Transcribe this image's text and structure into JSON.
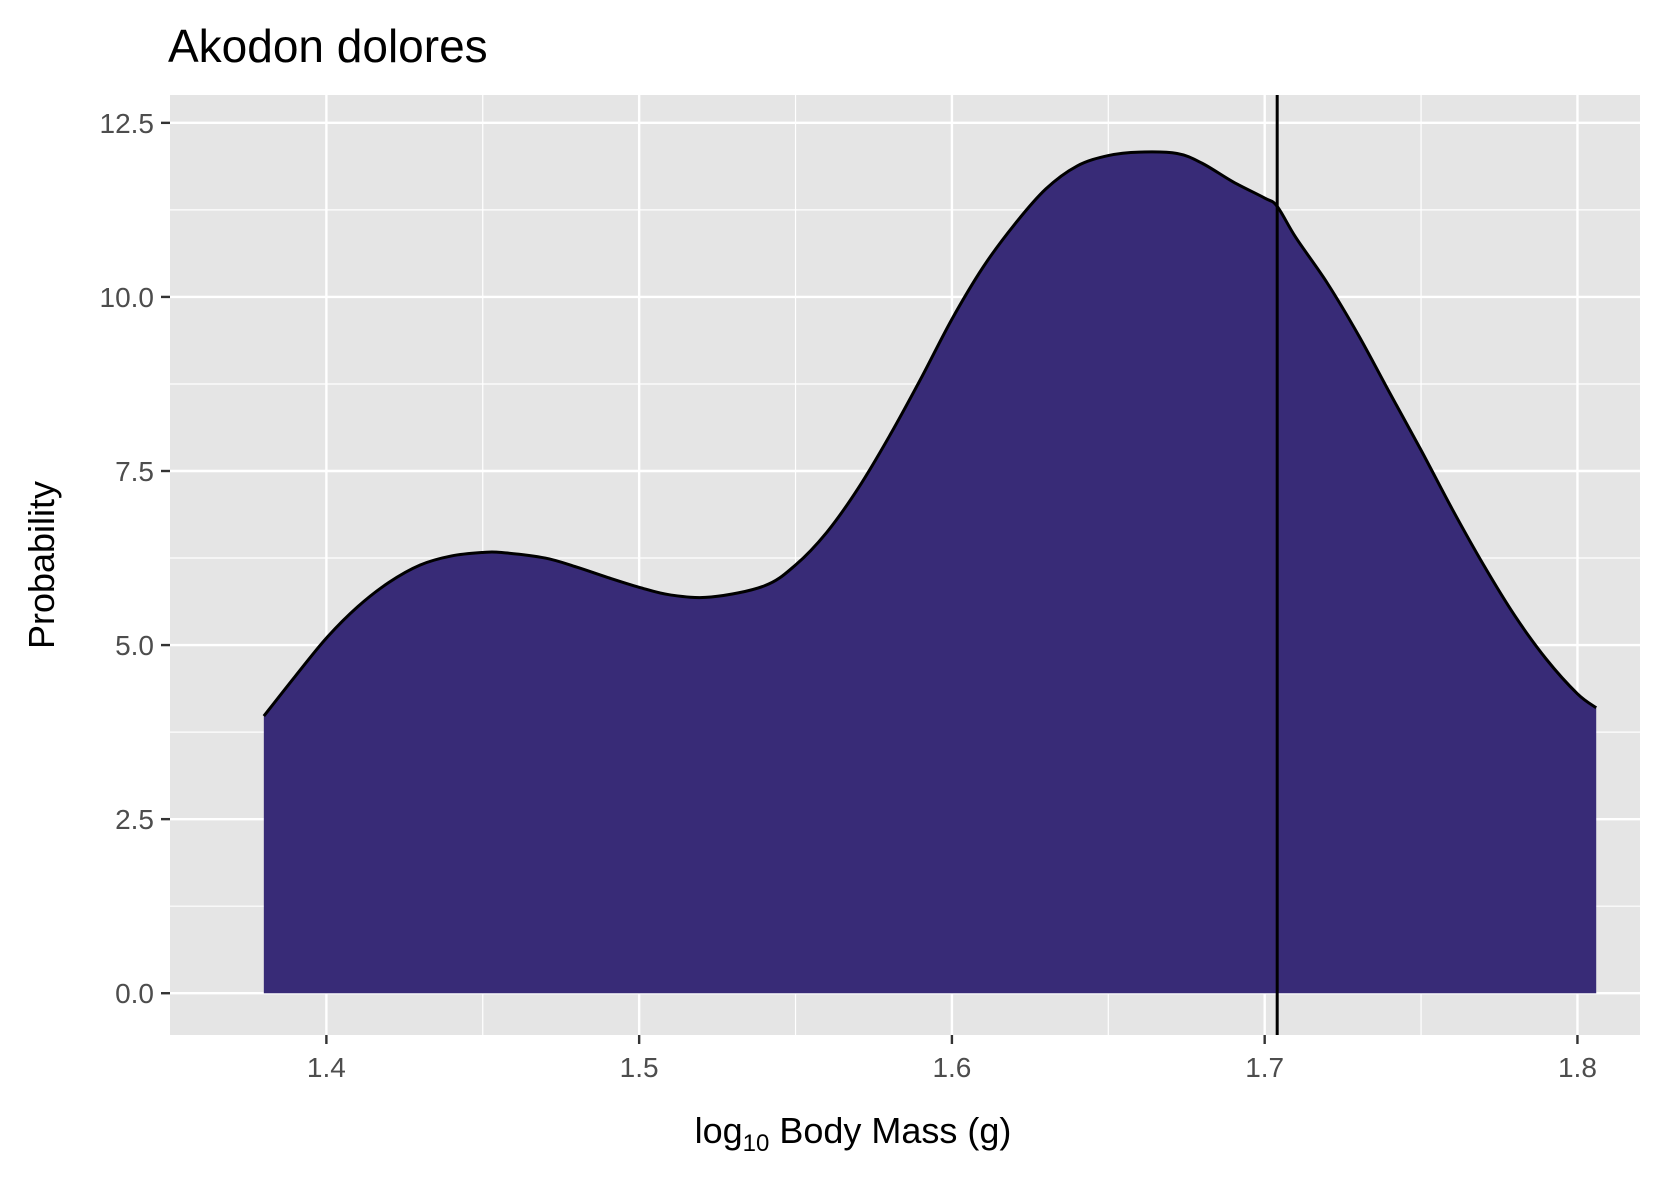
{
  "chart_data": {
    "type": "area",
    "title": "Akodon dolores",
    "xlabel_prefix": "log",
    "xlabel_subscript": "10",
    "xlabel_suffix": " Body Mass (g)",
    "ylabel": "Probability",
    "xlim": [
      1.35,
      1.82
    ],
    "ylim": [
      -0.6,
      12.9
    ],
    "x_ticks": [
      1.4,
      1.5,
      1.6,
      1.7,
      1.8
    ],
    "x_tick_labels": [
      "1.4",
      "1.5",
      "1.6",
      "1.7",
      "1.8"
    ],
    "y_ticks": [
      0.0,
      2.5,
      5.0,
      7.5,
      10.0,
      12.5
    ],
    "y_tick_labels": [
      "0.0",
      "2.5",
      "5.0",
      "7.5",
      "10.0",
      "12.5"
    ],
    "grid": true,
    "fill_color": "#382b77",
    "outline_color": "#000000",
    "panel_background": "#e5e5e5",
    "gridline_color": "#ffffff",
    "vline_x": 1.704,
    "vline_color": "#000000",
    "series": [
      {
        "x": [
          1.38,
          1.39,
          1.4,
          1.41,
          1.42,
          1.43,
          1.44,
          1.45,
          1.456,
          1.47,
          1.48,
          1.49,
          1.5,
          1.51,
          1.523,
          1.54,
          1.55,
          1.56,
          1.57,
          1.58,
          1.59,
          1.6,
          1.61,
          1.62,
          1.63,
          1.64,
          1.65,
          1.66,
          1.672,
          1.68,
          1.69,
          1.7,
          1.704,
          1.71,
          1.72,
          1.73,
          1.74,
          1.75,
          1.76,
          1.77,
          1.78,
          1.79,
          1.8,
          1.806
        ],
        "y": [
          3.98,
          4.55,
          5.1,
          5.55,
          5.9,
          6.15,
          6.28,
          6.33,
          6.33,
          6.25,
          6.12,
          5.97,
          5.83,
          5.72,
          5.69,
          5.85,
          6.15,
          6.62,
          7.25,
          8.0,
          8.82,
          9.68,
          10.43,
          11.04,
          11.55,
          11.88,
          12.03,
          12.08,
          12.06,
          11.92,
          11.65,
          11.42,
          11.3,
          10.85,
          10.2,
          9.45,
          8.62,
          7.8,
          6.95,
          6.15,
          5.42,
          4.8,
          4.3,
          4.1
        ]
      }
    ]
  }
}
